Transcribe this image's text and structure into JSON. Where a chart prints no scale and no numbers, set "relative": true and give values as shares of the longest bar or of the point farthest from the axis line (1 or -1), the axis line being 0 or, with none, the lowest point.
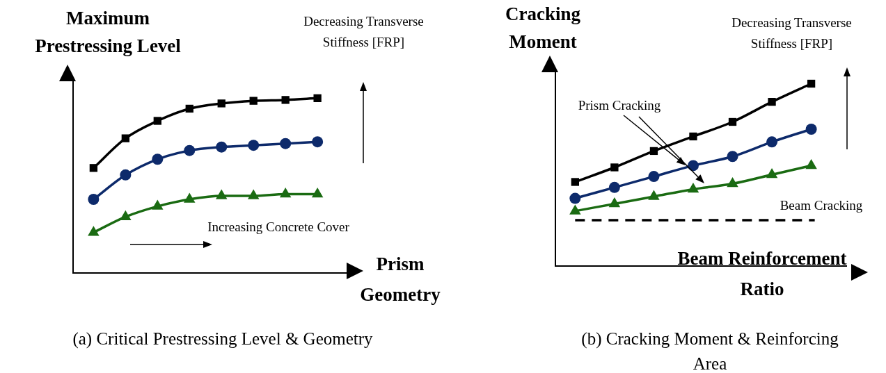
{
  "chart_data": [
    {
      "type": "line",
      "title": "(a) Critical Prestressing Level & Geometry",
      "xlabel": "Prism Geometry",
      "ylabel": "Maximum Prestressing Level",
      "relative": true,
      "tick_labels": false,
      "categories": [
        null,
        null,
        null,
        null,
        null,
        null,
        null,
        null
      ],
      "series": [
        {
          "color": "#000000",
          "marker": "square",
          "values": [
            0.6,
            0.77,
            0.87,
            0.94,
            0.97,
            0.985,
            0.99,
            1
          ]
        },
        {
          "color": "#0d2a6b",
          "marker": "circle",
          "values": [
            0.42,
            0.56,
            0.65,
            0.7,
            0.72,
            0.73,
            0.74,
            0.75
          ]
        },
        {
          "color": "#1a6b12",
          "marker": "triangle",
          "values": [
            0.23,
            0.32,
            0.38,
            0.42,
            0.44,
            0.44,
            0.45,
            0.45
          ]
        }
      ],
      "annotations": [
        "Decreasing Transverse Stiffness [FRP]",
        "Increasing Concrete Cover"
      ]
    },
    {
      "type": "line",
      "title": "(b) Cracking Moment & Reinforcing Area",
      "xlabel": "Beam Reinforcement Ratio",
      "ylabel": "Cracking Moment",
      "relative": true,
      "tick_labels": false,
      "categories": [
        null,
        null,
        null,
        null,
        null,
        null,
        null
      ],
      "series": [
        {
          "color": "#000000",
          "marker": "square",
          "values": [
            0.46,
            0.54,
            0.63,
            0.71,
            0.79,
            0.9,
            1
          ]
        },
        {
          "color": "#0d2a6b",
          "marker": "circle",
          "values": [
            0.37,
            0.43,
            0.49,
            0.55,
            0.6,
            0.68,
            0.75
          ]
        },
        {
          "color": "#1a6b12",
          "marker": "triangle",
          "values": [
            0.3,
            0.34,
            0.38,
            0.42,
            0.45,
            0.5,
            0.55
          ]
        }
      ],
      "ref_lines": [
        {
          "axis": "y",
          "value": 0.25,
          "label": "Beam Cracking",
          "color": "#000000",
          "line_style": "dashed"
        }
      ],
      "annotations": [
        "Decreasing Transverse Stiffness [FRP]",
        "Prism Cracking"
      ]
    }
  ]
}
